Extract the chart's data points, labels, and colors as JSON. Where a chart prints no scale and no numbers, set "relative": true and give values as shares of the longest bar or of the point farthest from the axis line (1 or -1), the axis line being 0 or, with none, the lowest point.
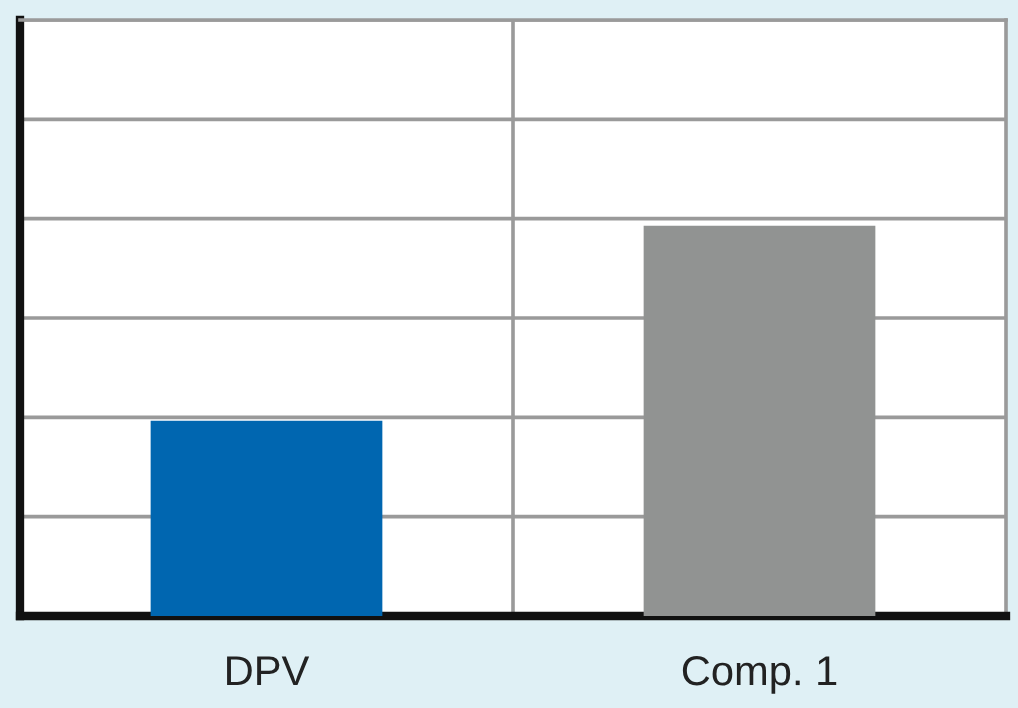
{
  "chart_data": {
    "type": "bar",
    "categories": [
      "DPV",
      "Comp. 1"
    ],
    "values": [
      0.5,
      1
    ],
    "colors": [
      "#0066b0",
      "#919392"
    ],
    "relative": true,
    "grid": true
  }
}
